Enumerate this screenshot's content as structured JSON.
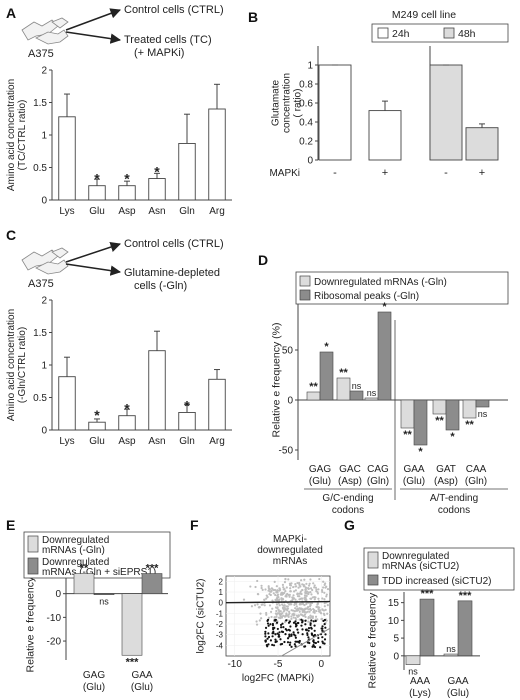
{
  "colors": {
    "bar_white": "#ffffff",
    "bar_light": "#dcdcdc",
    "bar_dark": "#8c8c8c",
    "axis": "#444444",
    "scatter_gray": "#bdbdbd",
    "scatter_black": "#111111"
  },
  "panels": [
    {
      "letter": "A",
      "diagram": {
        "source": "A375",
        "target1": "Control cells (CTRL)",
        "target2_line1": "Treated cells (TC)",
        "target2_line2": "(+ MAPKi)"
      },
      "chart_data": {
        "type": "bar",
        "ylabel_lines": [
          "Amino acid concentration",
          "(TC/CTRL ratio)"
        ],
        "categories": [
          "Lys",
          "Glu",
          "Asp",
          "Asn",
          "Gln",
          "Arg"
        ],
        "values": [
          1.28,
          0.22,
          0.22,
          0.33,
          0.87,
          1.4
        ],
        "errors": [
          0.35,
          0.1,
          0.07,
          0.08,
          0.45,
          0.38
        ],
        "stars": [
          "",
          "*",
          "*",
          "*",
          "",
          ""
        ],
        "ylim": [
          0,
          2
        ],
        "yticks": [
          0,
          0.5,
          1,
          1.5,
          2
        ],
        "ytick_labels": [
          "0",
          "0.5",
          "1",
          "1.5",
          "2"
        ]
      }
    },
    {
      "letter": "B",
      "legend_title": "M249 cell line",
      "chart_data": {
        "type": "bar",
        "ylabel_lines": [
          "Glutamate",
          "concentration",
          "( ratio)"
        ],
        "xlabel": "MAPKi",
        "groups": [
          {
            "name": "24h",
            "categories": [
              "-",
              "+"
            ],
            "values": [
              1.0,
              0.52
            ],
            "errors": [
              0.0,
              0.1
            ]
          },
          {
            "name": "48h",
            "categories": [
              "-",
              "+"
            ],
            "values": [
              1.0,
              0.34
            ],
            "errors": [
              0.0,
              0.04
            ]
          }
        ],
        "ylim": [
          0,
          1.2
        ],
        "yticks": [
          0,
          0.2,
          0.4,
          0.6,
          0.8,
          1
        ],
        "ytick_labels": [
          "0",
          "0.2",
          "0.4",
          "0.6",
          "0.8",
          "1"
        ]
      }
    },
    {
      "letter": "C",
      "diagram": {
        "source": "A375",
        "target1": "Control cells (CTRL)",
        "target2_line1": "Glutamine-depleted",
        "target2_line2": "cells (-Gln)"
      },
      "chart_data": {
        "type": "bar",
        "ylabel_lines": [
          "Amino acid concentration",
          "(-Gln/CTRL ratio)"
        ],
        "categories": [
          "Lys",
          "Glu",
          "Asp",
          "Asn",
          "Gln",
          "Arg"
        ],
        "values": [
          0.82,
          0.12,
          0.22,
          1.22,
          0.27,
          0.78
        ],
        "errors": [
          0.3,
          0.05,
          0.1,
          0.3,
          0.12,
          0.15
        ],
        "stars": [
          "",
          "*",
          "*",
          "",
          "*",
          ""
        ],
        "ylim": [
          0,
          2
        ],
        "yticks": [
          0,
          0.5,
          1,
          1.5,
          2
        ],
        "ytick_labels": [
          "0",
          "0.5",
          "1",
          "1.5",
          "2"
        ]
      }
    },
    {
      "letter": "D",
      "chart_data": {
        "type": "bar",
        "ylabel": "Relative e  frequency (%)",
        "series": [
          {
            "name": "Downregulated mRNAs (-Gln)",
            "values": [
              8,
              22,
              2,
              -28,
              -14,
              -18
            ]
          },
          {
            "name": "Ribosomal peaks (-Gln)",
            "values": [
              48,
              9,
              88,
              -45,
              -30,
              -7
            ]
          }
        ],
        "stars": [
          [
            "**",
            "*"
          ],
          [
            "**",
            "ns"
          ],
          [
            "ns",
            "*"
          ],
          [
            "**",
            "*"
          ],
          [
            "**",
            "*"
          ],
          [
            "**",
            "ns"
          ]
        ],
        "category_lines": [
          [
            "GAG",
            "(Glu)"
          ],
          [
            "GAC",
            "(Asp)"
          ],
          [
            "CAG",
            "(Gln)"
          ],
          [
            "GAA",
            "(Glu)"
          ],
          [
            "GAT",
            "(Asp)"
          ],
          [
            "CAA",
            "(Gln)"
          ]
        ],
        "group_labels": [
          [
            "G/C-ending",
            "codons"
          ],
          [
            "A/T-ending",
            "codons"
          ]
        ],
        "ylim": [
          -60,
          100
        ],
        "yticks": [
          -50,
          0,
          50
        ],
        "ytick_labels": [
          "-50",
          "0",
          "50"
        ]
      }
    },
    {
      "letter": "E",
      "chart_data": {
        "type": "bar",
        "ylabel": "Relative e  frequency (%)",
        "series": [
          {
            "name": "Downregulated mRNAs (-Gln)",
            "name_lines": [
              "Downregulated",
              "mRNAs (-Gln)"
            ],
            "values": [
              8.5,
              -26
            ]
          },
          {
            "name": "Downregulated mRNAs (-Gln + siEPRS1)",
            "name_lines": [
              "Downregulated",
              "mRNAs (-Gln + siEPRS1)"
            ],
            "values": [
              -0.4,
              8.5
            ]
          }
        ],
        "stars": [
          [
            "**",
            "ns"
          ],
          [
            "***",
            "***"
          ]
        ],
        "category_lines": [
          [
            "GAG",
            "(Glu)"
          ],
          [
            "GAA",
            "(Glu)"
          ]
        ],
        "ylim": [
          -28,
          10
        ],
        "yticks": [
          -20,
          -10,
          0
        ],
        "ytick_labels": [
          "-20",
          "-10",
          "0"
        ]
      }
    },
    {
      "letter": "F",
      "chart_data": {
        "type": "scatter",
        "title_lines": [
          "MAPKi-",
          "downregulated",
          "mRNAs"
        ],
        "xlabel": "log2FC (MAPKi)",
        "ylabel": "log2FC (siCTU2)",
        "xlim": [
          -11,
          1
        ],
        "ylim": [
          -5,
          2.5
        ],
        "xticks": [
          -10,
          -5,
          0
        ],
        "xtick_labels": [
          "-10",
          "-5",
          "0"
        ],
        "yticks": [
          -4,
          -3,
          -2,
          -1,
          0,
          1,
          2
        ],
        "ytick_labels": [
          "-4",
          "-3",
          "-2",
          "-1",
          "0",
          "1",
          "2"
        ]
      }
    },
    {
      "letter": "G",
      "chart_data": {
        "type": "bar",
        "ylabel": "Relative e  frequency (%)",
        "series": [
          {
            "name": "Downregulated mRNAs (siCTU2)",
            "name_lines": [
              "Downregulated",
              "mRNAs (siCTU2)"
            ],
            "values": [
              -2.5,
              0.5
            ]
          },
          {
            "name": "TDD increased (siCTU2)",
            "values": [
              16,
              15.5
            ]
          }
        ],
        "stars": [
          [
            "ns",
            "***"
          ],
          [
            "ns",
            "***"
          ]
        ],
        "category_lines": [
          [
            "AAA",
            "(Lys)"
          ],
          [
            "GAA",
            "(Glu)"
          ]
        ],
        "ylim": [
          -4,
          18
        ],
        "yticks": [
          0,
          5,
          10,
          15
        ],
        "ytick_labels": [
          "0",
          "5",
          "10",
          "15"
        ]
      }
    }
  ]
}
